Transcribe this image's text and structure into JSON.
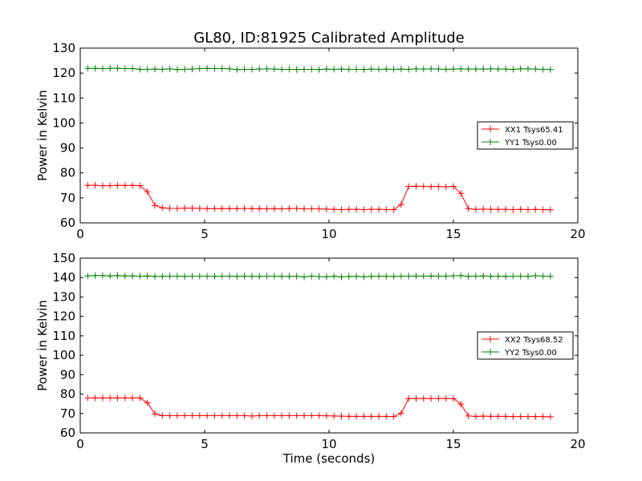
{
  "figure": {
    "title": "GL80, ID:81925 Calibrated Amplitude",
    "xlabel": "Time (seconds)"
  },
  "chart_data": [
    {
      "type": "line",
      "title": "GL80, ID:81925 Calibrated Amplitude",
      "xlabel": "",
      "ylabel": "Power in Kelvin",
      "xlim": [
        0,
        20
      ],
      "ylim": [
        60,
        130
      ],
      "xticks": [
        "0",
        "5",
        "10",
        "15",
        "20"
      ],
      "yticks": [
        "60",
        "70",
        "80",
        "90",
        "100",
        "110",
        "120",
        "130"
      ],
      "grid": false,
      "legend_position": "right",
      "x": [
        0.3,
        0.6,
        0.9,
        1.2,
        1.5,
        1.8,
        2.1,
        2.4,
        2.7,
        3.0,
        3.3,
        3.6,
        3.9,
        4.2,
        4.5,
        4.8,
        5.1,
        5.4,
        5.7,
        6.0,
        6.3,
        6.6,
        6.9,
        7.2,
        7.5,
        7.8,
        8.1,
        8.4,
        8.7,
        9.0,
        9.3,
        9.6,
        9.9,
        10.2,
        10.5,
        10.8,
        11.1,
        11.4,
        11.7,
        12.0,
        12.3,
        12.6,
        12.9,
        13.2,
        13.5,
        13.8,
        14.1,
        14.4,
        14.7,
        15.0,
        15.3,
        15.6,
        15.9,
        16.2,
        16.5,
        16.8,
        17.1,
        17.4,
        17.7,
        18.0,
        18.3,
        18.6,
        18.9
      ],
      "series": [
        {
          "name": "XX1 Tsys65.41",
          "color": "#ff0000",
          "values": [
            75.0,
            75.1,
            74.9,
            74.9,
            75.0,
            75.0,
            75.0,
            74.9,
            72.5,
            67.0,
            66.0,
            65.8,
            65.8,
            65.9,
            65.9,
            65.8,
            65.7,
            65.7,
            65.7,
            65.7,
            65.7,
            65.8,
            65.7,
            65.7,
            65.6,
            65.7,
            65.6,
            65.7,
            65.8,
            65.6,
            65.6,
            65.6,
            65.5,
            65.4,
            65.3,
            65.4,
            65.4,
            65.3,
            65.4,
            65.4,
            65.3,
            65.3,
            67.3,
            74.6,
            74.7,
            74.6,
            74.5,
            74.6,
            74.4,
            74.6,
            71.8,
            65.7,
            65.4,
            65.5,
            65.4,
            65.4,
            65.4,
            65.3,
            65.4,
            65.3,
            65.4,
            65.3,
            65.2
          ]
        },
        {
          "name": "YY1 Tsys0.00",
          "color": "#008000",
          "values": [
            121.9,
            121.9,
            121.8,
            121.9,
            121.9,
            121.8,
            121.8,
            121.5,
            121.5,
            121.6,
            121.5,
            121.7,
            121.4,
            121.5,
            121.6,
            121.8,
            121.9,
            121.8,
            121.8,
            121.7,
            121.4,
            121.5,
            121.5,
            121.6,
            121.7,
            121.6,
            121.5,
            121.5,
            121.4,
            121.5,
            121.5,
            121.4,
            121.6,
            121.5,
            121.6,
            121.5,
            121.5,
            121.4,
            121.6,
            121.5,
            121.6,
            121.5,
            121.6,
            121.5,
            121.7,
            121.6,
            121.7,
            121.6,
            121.5,
            121.6,
            121.7,
            121.6,
            121.6,
            121.6,
            121.7,
            121.6,
            121.6,
            121.5,
            121.7,
            121.7,
            121.6,
            121.5,
            121.4
          ]
        }
      ]
    },
    {
      "type": "line",
      "title": "",
      "xlabel": "Time (seconds)",
      "ylabel": "Power in Kelvin",
      "xlim": [
        0,
        20
      ],
      "ylim": [
        60,
        150
      ],
      "xticks": [
        "0",
        "5",
        "10",
        "15",
        "20"
      ],
      "yticks": [
        "60",
        "70",
        "80",
        "90",
        "100",
        "110",
        "120",
        "130",
        "140",
        "150"
      ],
      "grid": false,
      "legend_position": "right",
      "x": [
        0.3,
        0.6,
        0.9,
        1.2,
        1.5,
        1.8,
        2.1,
        2.4,
        2.7,
        3.0,
        3.3,
        3.6,
        3.9,
        4.2,
        4.5,
        4.8,
        5.1,
        5.4,
        5.7,
        6.0,
        6.3,
        6.6,
        6.9,
        7.2,
        7.5,
        7.8,
        8.1,
        8.4,
        8.7,
        9.0,
        9.3,
        9.6,
        9.9,
        10.2,
        10.5,
        10.8,
        11.1,
        11.4,
        11.7,
        12.0,
        12.3,
        12.6,
        12.9,
        13.2,
        13.5,
        13.8,
        14.1,
        14.4,
        14.7,
        15.0,
        15.3,
        15.6,
        15.9,
        16.2,
        16.5,
        16.8,
        17.1,
        17.4,
        17.7,
        18.0,
        18.3,
        18.6,
        18.9
      ],
      "series": [
        {
          "name": "XX2 Tsys68.52",
          "color": "#ff0000",
          "values": [
            78.0,
            78.0,
            78.0,
            78.0,
            78.0,
            78.0,
            78.0,
            78.0,
            75.5,
            69.8,
            68.9,
            68.9,
            68.9,
            68.9,
            68.9,
            68.9,
            68.9,
            68.9,
            68.9,
            68.9,
            68.9,
            68.9,
            68.7,
            68.9,
            68.9,
            68.9,
            68.9,
            68.9,
            68.9,
            68.9,
            68.9,
            68.9,
            68.8,
            68.7,
            68.6,
            68.5,
            68.5,
            68.5,
            68.5,
            68.5,
            68.5,
            68.4,
            70.1,
            77.7,
            77.7,
            77.7,
            77.7,
            77.7,
            77.7,
            77.7,
            74.8,
            68.7,
            68.5,
            68.6,
            68.5,
            68.5,
            68.5,
            68.4,
            68.4,
            68.4,
            68.4,
            68.4,
            68.3
          ]
        },
        {
          "name": "YY2 Tsys0.00",
          "color": "#008000",
          "values": [
            140.8,
            141.0,
            141.0,
            140.8,
            141.0,
            140.8,
            140.8,
            140.7,
            140.8,
            140.6,
            140.6,
            140.7,
            140.7,
            140.6,
            140.7,
            140.7,
            140.7,
            140.6,
            140.7,
            140.7,
            140.6,
            140.7,
            140.6,
            140.6,
            140.7,
            140.7,
            140.6,
            140.6,
            140.7,
            140.3,
            140.7,
            140.5,
            140.4,
            140.7,
            140.3,
            140.6,
            140.6,
            140.4,
            140.6,
            140.7,
            140.6,
            140.6,
            140.7,
            140.7,
            140.8,
            140.7,
            140.8,
            140.7,
            140.7,
            140.9,
            141.0,
            140.6,
            140.7,
            140.8,
            140.6,
            140.7,
            140.6,
            140.7,
            140.7,
            140.6,
            140.9,
            140.7,
            140.6
          ]
        }
      ]
    }
  ]
}
